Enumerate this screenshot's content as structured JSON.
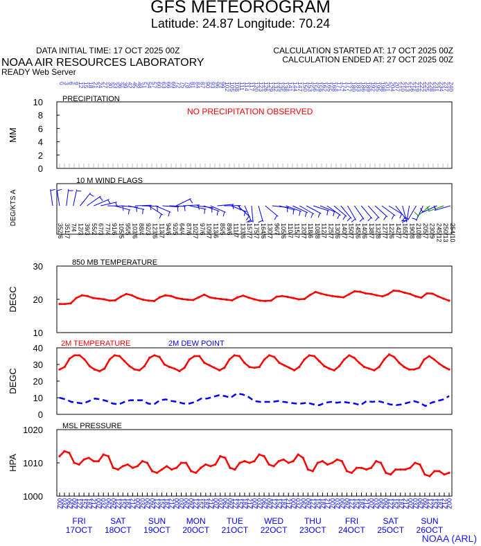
{
  "header": {
    "title": "GFS METEOROGRAM",
    "location": "Latitude: 24.87 Longitude:  70.24",
    "initial_time": "DATA INITIAL TIME: 17 OCT 2025 00Z",
    "calc_started": "CALCULATION STARTED AT: 17 OCT 2025 00Z",
    "calc_ended": "CALCULATION ENDED AT: 27 OCT 2025 00Z",
    "lab": "NOAA AIR RESOURCES LABORATORY",
    "server": "READY Web Server"
  },
  "footer": {
    "credit": "NOAA (ARL)"
  },
  "colors": {
    "red": "#ff0000",
    "blue": "#0000ff",
    "green": "#008800",
    "tick_blue": "#3333ff"
  },
  "chart_data": [
    {
      "type": "bar",
      "title": "PRECIPITATION",
      "ylabel": "MM",
      "ylim": [
        0,
        10
      ],
      "yticks": [
        0,
        2,
        4,
        6,
        8,
        10
      ],
      "note": "NO PRECIPITATION OBSERVED",
      "values": []
    },
    {
      "type": "scatter",
      "title": "10 M  WIND FLAGS",
      "ylabel": "DEG/KTS  A",
      "directions": [
        352,
        351,
        7,
        12,
        39,
        55,
        67,
        77,
        91,
        105,
        95,
        103,
        88,
        92,
        123,
        113,
        94,
        92,
        64,
        87,
        102,
        97,
        109,
        113,
        85,
        89,
        111,
        133,
        157,
        175,
        164,
        130,
        96,
        105,
        110,
        115,
        120,
        118,
        108,
        112,
        125,
        130,
        140,
        150,
        145,
        140,
        138,
        132,
        127,
        122,
        142,
        165,
        190,
        210,
        205,
        230,
        245,
        250,
        254
      ],
      "speeds": [
        6,
        7,
        4,
        3,
        3,
        2,
        3,
        4,
        6,
        5,
        5,
        6,
        4,
        3,
        6,
        7,
        6,
        5,
        4,
        6,
        7,
        6,
        7,
        6,
        5,
        6,
        7,
        6,
        7,
        7,
        6,
        7,
        7,
        6,
        7,
        7,
        7,
        6,
        8,
        7,
        7,
        6,
        7,
        7,
        6,
        6,
        7,
        8,
        7,
        6,
        7,
        7,
        8,
        8,
        7,
        9,
        12,
        13,
        10
      ]
    },
    {
      "type": "line",
      "title": "850 MB  TEMPERATURE",
      "ylabel": "DEGC",
      "ylim": [
        10,
        30
      ],
      "yticks": [
        10,
        20,
        30
      ],
      "series": [
        {
          "color": "#ff0000",
          "values": [
            18.6,
            18.6,
            18.8,
            20.4,
            21.2,
            21.0,
            20.4,
            20.2,
            20.0,
            19.6,
            19.7,
            20.8,
            21.6,
            21.2,
            20.4,
            19.9,
            19.6,
            19.5,
            20.6,
            21.2,
            21.0,
            20.4,
            20.1,
            19.9,
            19.8,
            20.6,
            21.4,
            20.6,
            20.3,
            20.1,
            19.9,
            19.7,
            20.6,
            21.1,
            20.5,
            20.0,
            19.6,
            19.5,
            19.6,
            20.8,
            21.0,
            20.7,
            20.4,
            20.0,
            20.1,
            21.3,
            22.2,
            21.7,
            21.3,
            21.0,
            20.8,
            20.6,
            21.5,
            22.4,
            22.3,
            21.8,
            21.6,
            21.2,
            20.9,
            21.5,
            22.6,
            22.5,
            22.0,
            21.6,
            20.9,
            20.5,
            21.8,
            21.7,
            20.9,
            20.2,
            19.6
          ]
        }
      ]
    },
    {
      "type": "line",
      "title": "2M TEMPERATURE",
      "title2": "2M  DEW POINT",
      "ylabel": "DEGC",
      "ylim": [
        0,
        40
      ],
      "yticks": [
        0,
        10,
        20,
        30,
        40
      ],
      "series": [
        {
          "name": "2M TEMPERATURE",
          "color": "#ff0000",
          "values": [
            27,
            28.5,
            33.5,
            35.5,
            35.5,
            33,
            29,
            27,
            26,
            27.5,
            33,
            35.5,
            35,
            32,
            29,
            27,
            26.5,
            29,
            34,
            35.5,
            34.5,
            30,
            28.5,
            27.5,
            26,
            28,
            33,
            35,
            35,
            31,
            29.5,
            28,
            26.5,
            28,
            33,
            35.5,
            35,
            31,
            28.5,
            28,
            28.5,
            33,
            35.5,
            34.5,
            31,
            29.5,
            28,
            26.5,
            28.5,
            33,
            35.5,
            35,
            32,
            29,
            27.5,
            26.5,
            29,
            33,
            35.5,
            34,
            31,
            28.5,
            27.5,
            26.5,
            28.5,
            33,
            36,
            34.5,
            31,
            28.5,
            27,
            27,
            28,
            33,
            35,
            33,
            30.5,
            28.5,
            27
          ]
        },
        {
          "name": "2M  DEW POINT",
          "color": "#0000ff",
          "values": [
            10,
            9,
            7.5,
            7,
            6.5,
            8,
            9.5,
            9,
            8,
            6.5,
            6,
            7.5,
            8.5,
            8.5,
            8.5,
            6.5,
            6,
            8.5,
            9,
            8,
            7.5,
            6.5,
            6.5,
            7.5,
            9.5,
            9.5,
            10.5,
            11.5,
            11,
            10,
            12.5,
            12,
            10.5,
            8,
            7.5,
            7.5,
            7.5,
            8,
            7.5,
            7,
            6.5,
            6.5,
            7,
            6,
            5.5,
            7,
            7.5,
            7,
            7.5,
            7,
            6.5,
            5.5,
            8,
            7.5,
            8,
            7,
            6,
            5.5,
            6,
            7,
            8,
            7,
            5,
            7,
            8,
            9,
            11
          ]
        }
      ]
    },
    {
      "type": "line",
      "title": "MSL PRESSURE",
      "ylabel": "HPA",
      "ylim": [
        1000,
        1020
      ],
      "yticks": [
        1000,
        1010,
        1020
      ],
      "series": [
        {
          "color": "#ff0000",
          "values": [
            1012,
            1013.5,
            1013,
            1010,
            1009.5,
            1011,
            1011.5,
            1010.5,
            1010.5,
            1012.5,
            1012,
            1008.5,
            1008,
            1009,
            1009.5,
            1008.5,
            1009,
            1010.5,
            1010,
            1007.5,
            1007,
            1008,
            1009,
            1008,
            1008.5,
            1010,
            1010,
            1007.5,
            1007,
            1008.5,
            1009.5,
            1009,
            1009.5,
            1012,
            1011.5,
            1008.5,
            1008,
            1010,
            1010.5,
            1010,
            1010.5,
            1012.5,
            1012,
            1009.5,
            1009,
            1010.5,
            1011,
            1010,
            1010.5,
            1012.5,
            1011.5,
            1008,
            1007.5,
            1010,
            1010.5,
            1009.5,
            1010,
            1011,
            1010.5,
            1007.5,
            1007,
            1008.5,
            1008.5,
            1008,
            1008.5,
            1010.5,
            1010,
            1007,
            1006.5,
            1008,
            1008,
            1008,
            1008.5,
            1010,
            1009.5,
            1006.5,
            1006,
            1007.5,
            1007.5,
            1006.5,
            1007
          ]
        }
      ]
    }
  ],
  "x_axis": {
    "top_hour_labels": [
      "0",
      "3",
      "6",
      "9",
      "12",
      "15",
      "18",
      "21",
      "24",
      "27",
      "30",
      "33",
      "36",
      "39",
      "42",
      "45",
      "48",
      "51",
      "54",
      "57",
      "60",
      "63",
      "66",
      "69",
      "72",
      "75",
      "78",
      "81",
      "84",
      "87",
      "90",
      "93",
      "96",
      "99",
      "102",
      "105",
      "108",
      "111",
      "114",
      "117",
      "120",
      "123",
      "126",
      "129",
      "132",
      "135",
      "138",
      "141",
      "144",
      "147",
      "150",
      "153",
      "156",
      "159",
      "162",
      "165",
      "168",
      "171",
      "174",
      "177",
      "180",
      "183",
      "186",
      "189",
      "192",
      "195",
      "198",
      "201",
      "204",
      "207",
      "210",
      "213",
      "216",
      "219",
      "222",
      "225",
      "228",
      "231",
      "234",
      "237",
      "240"
    ],
    "bottom_hour_labels": [
      "00Z",
      "03Z",
      "06Z",
      "09Z",
      "12Z",
      "15Z",
      "18Z",
      "21Z",
      "00Z",
      "03Z",
      "06Z",
      "09Z",
      "12Z",
      "15Z",
      "18Z",
      "21Z",
      "00Z",
      "03Z",
      "06Z",
      "09Z",
      "12Z",
      "15Z",
      "18Z",
      "21Z",
      "00Z",
      "03Z",
      "06Z",
      "09Z",
      "12Z",
      "15Z",
      "18Z",
      "21Z",
      "00Z",
      "03Z",
      "06Z",
      "09Z",
      "12Z",
      "15Z",
      "18Z",
      "21Z",
      "00Z",
      "03Z",
      "06Z",
      "09Z",
      "12Z",
      "15Z",
      "18Z",
      "21Z",
      "00Z",
      "03Z",
      "06Z",
      "09Z",
      "12Z",
      "15Z",
      "18Z",
      "21Z",
      "00Z",
      "03Z",
      "06Z",
      "09Z",
      "12Z",
      "15Z",
      "18Z",
      "21Z",
      "00Z",
      "03Z",
      "06Z",
      "09Z",
      "12Z",
      "15Z",
      "18Z",
      "21Z",
      "00Z",
      "03Z",
      "06Z",
      "09Z",
      "12Z",
      "15Z",
      "18Z",
      "21Z",
      "00Z"
    ],
    "days": [
      {
        "weekday": "FRI",
        "date": "17OCT"
      },
      {
        "weekday": "SAT",
        "date": "18OCT"
      },
      {
        "weekday": "SUN",
        "date": "19OCT"
      },
      {
        "weekday": "MON",
        "date": "20OCT"
      },
      {
        "weekday": "TUE",
        "date": "21OCT"
      },
      {
        "weekday": "WED",
        "date": "22OCT"
      },
      {
        "weekday": "THU",
        "date": "23OCT"
      },
      {
        "weekday": "FRI",
        "date": "24OCT"
      },
      {
        "weekday": "SAT",
        "date": "25OCT"
      },
      {
        "weekday": "SUN",
        "date": "26OCT"
      }
    ]
  }
}
